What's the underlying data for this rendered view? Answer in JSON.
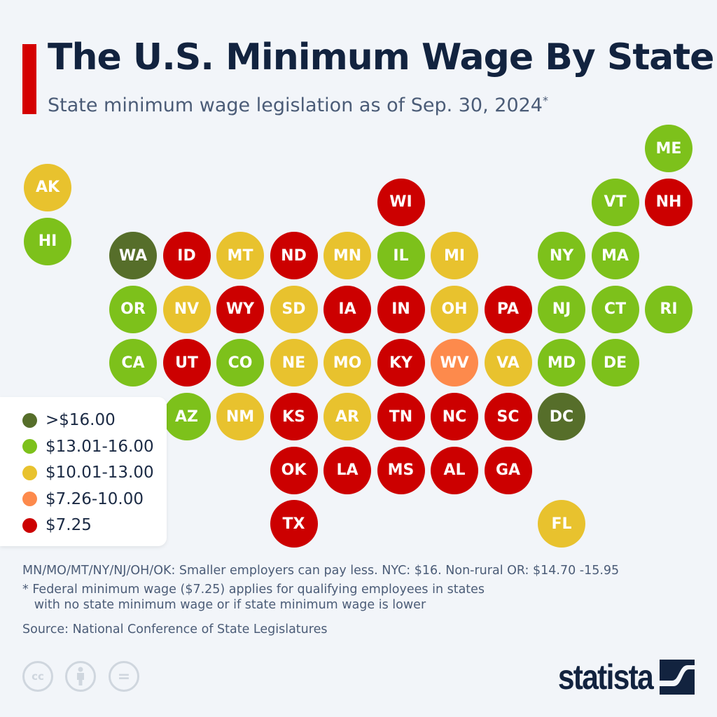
{
  "header": {
    "title": "The U.S. Minimum Wage By State",
    "subtitle": "State minimum wage legislation as of Sep. 30, 2024",
    "subtitle_mark": "*"
  },
  "chart_data": {
    "type": "tile-map",
    "categories": [
      {
        "key": "gt16",
        "label": ">$16.00",
        "color": "#566e2a"
      },
      {
        "key": "13to16",
        "label": "$13.01-16.00",
        "color": "#7dc11b"
      },
      {
        "key": "10to13",
        "label": "$10.01-13.00",
        "color": "#e8c22e"
      },
      {
        "key": "7to10",
        "label": "$7.26-10.00",
        "color": "#fd8a4c"
      },
      {
        "key": "725",
        "label": "$7.25",
        "color": "#cc0000"
      }
    ],
    "states": [
      {
        "abbr": "ME",
        "category": "13to16"
      },
      {
        "abbr": "AK",
        "category": "10to13"
      },
      {
        "abbr": "WI",
        "category": "725"
      },
      {
        "abbr": "VT",
        "category": "13to16"
      },
      {
        "abbr": "NH",
        "category": "725"
      },
      {
        "abbr": "HI",
        "category": "13to16"
      },
      {
        "abbr": "WA",
        "category": "gt16"
      },
      {
        "abbr": "ID",
        "category": "725"
      },
      {
        "abbr": "MT",
        "category": "10to13"
      },
      {
        "abbr": "ND",
        "category": "725"
      },
      {
        "abbr": "MN",
        "category": "10to13"
      },
      {
        "abbr": "IL",
        "category": "13to16"
      },
      {
        "abbr": "MI",
        "category": "10to13"
      },
      {
        "abbr": "NY",
        "category": "13to16"
      },
      {
        "abbr": "MA",
        "category": "13to16"
      },
      {
        "abbr": "OR",
        "category": "13to16"
      },
      {
        "abbr": "NV",
        "category": "10to13"
      },
      {
        "abbr": "WY",
        "category": "725"
      },
      {
        "abbr": "SD",
        "category": "10to13"
      },
      {
        "abbr": "IA",
        "category": "725"
      },
      {
        "abbr": "IN",
        "category": "725"
      },
      {
        "abbr": "OH",
        "category": "10to13"
      },
      {
        "abbr": "PA",
        "category": "725"
      },
      {
        "abbr": "NJ",
        "category": "13to16"
      },
      {
        "abbr": "CT",
        "category": "13to16"
      },
      {
        "abbr": "RI",
        "category": "13to16"
      },
      {
        "abbr": "CA",
        "category": "13to16"
      },
      {
        "abbr": "UT",
        "category": "725"
      },
      {
        "abbr": "CO",
        "category": "13to16"
      },
      {
        "abbr": "NE",
        "category": "10to13"
      },
      {
        "abbr": "MO",
        "category": "10to13"
      },
      {
        "abbr": "KY",
        "category": "725"
      },
      {
        "abbr": "WV",
        "category": "7to10"
      },
      {
        "abbr": "VA",
        "category": "10to13"
      },
      {
        "abbr": "MD",
        "category": "13to16"
      },
      {
        "abbr": "DE",
        "category": "13to16"
      },
      {
        "abbr": "AZ",
        "category": "13to16"
      },
      {
        "abbr": "NM",
        "category": "10to13"
      },
      {
        "abbr": "KS",
        "category": "725"
      },
      {
        "abbr": "AR",
        "category": "10to13"
      },
      {
        "abbr": "TN",
        "category": "725"
      },
      {
        "abbr": "NC",
        "category": "725"
      },
      {
        "abbr": "SC",
        "category": "725"
      },
      {
        "abbr": "DC",
        "category": "gt16"
      },
      {
        "abbr": "OK",
        "category": "725"
      },
      {
        "abbr": "LA",
        "category": "725"
      },
      {
        "abbr": "MS",
        "category": "725"
      },
      {
        "abbr": "AL",
        "category": "725"
      },
      {
        "abbr": "GA",
        "category": "725"
      },
      {
        "abbr": "TX",
        "category": "725"
      },
      {
        "abbr": "FL",
        "category": "10to13"
      }
    ],
    "legend_position": "left"
  },
  "notes": {
    "line1": "MN/MO/MT/NY/NJ/OH/OK: Smaller employers can pay less. NYC: $16. Non-rural OR: $14.70 -15.95",
    "line2": "* Federal minimum wage ($7.25) applies for qualifying employees in states\n   with no state minimum wage or if state minimum wage is lower",
    "source": "Source: National Conference of State Legislatures"
  },
  "footer": {
    "license_icons": [
      "cc-icon",
      "attribution-icon",
      "no-derivatives-icon"
    ],
    "cc_label": "cc",
    "nd_label": "=",
    "logo": "statista"
  }
}
